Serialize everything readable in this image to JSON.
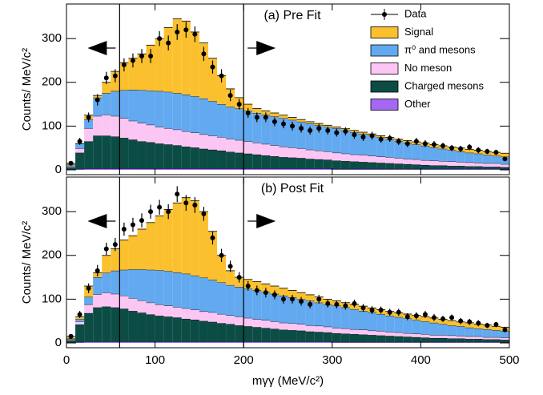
{
  "chart_data": [
    {
      "type": "stacked-histogram",
      "title": "(a) Pre Fit",
      "ylabel": "Counts/ MeV/c²",
      "xlim": [
        0,
        500
      ],
      "xticks": [
        0,
        100,
        200,
        300,
        400,
        500
      ],
      "ylim": [
        -11,
        379
      ],
      "yticks": [
        0,
        100,
        200,
        300
      ],
      "cuts": [
        60,
        200
      ],
      "legend": "upper right",
      "bins": [
        0,
        10,
        20,
        30,
        40,
        50,
        60,
        70,
        80,
        90,
        100,
        110,
        120,
        130,
        140,
        150,
        160,
        170,
        180,
        190,
        200,
        210,
        220,
        230,
        240,
        250,
        260,
        270,
        280,
        290,
        300,
        310,
        320,
        330,
        340,
        350,
        360,
        370,
        380,
        390,
        400,
        410,
        420,
        430,
        440,
        450,
        460,
        470,
        480,
        490,
        500
      ],
      "series": [
        {
          "name": "Other",
          "color": "#a468f4",
          "values": [
            1,
            2,
            3,
            3,
            3,
            3,
            3,
            3,
            3,
            3,
            3,
            3,
            3,
            3,
            3,
            3,
            3,
            3,
            3,
            3,
            3,
            3,
            3,
            3,
            3,
            3,
            3,
            3,
            3,
            3,
            2,
            2,
            2,
            2,
            2,
            2,
            2,
            2,
            2,
            2,
            2,
            2,
            2,
            2,
            2,
            2,
            2,
            2,
            2,
            2
          ]
        },
        {
          "name": "Charged mesons",
          "color": "#0b4d45",
          "values": [
            5,
            37,
            62,
            75,
            75,
            73,
            70,
            66,
            62,
            60,
            57,
            55,
            53,
            50,
            48,
            45,
            43,
            41,
            38,
            36,
            34,
            32,
            30,
            28,
            26,
            25,
            24,
            22,
            21,
            20,
            19,
            18,
            17,
            16,
            15,
            14,
            13,
            12,
            11,
            10,
            9,
            8,
            8,
            7,
            7,
            6,
            6,
            5,
            5,
            4
          ]
        },
        {
          "name": "No meson",
          "color": "#fbc6f3",
          "values": [
            3,
            10,
            30,
            45,
            48,
            47,
            45,
            43,
            42,
            40,
            38,
            37,
            36,
            35,
            34,
            33,
            32,
            31,
            30,
            29,
            28,
            27,
            26,
            25,
            24,
            23,
            22,
            21,
            20,
            19,
            18,
            17,
            16,
            16,
            15,
            14,
            14,
            13,
            12,
            12,
            11,
            11,
            10,
            10,
            9,
            9,
            8,
            8,
            8,
            7
          ]
        },
        {
          "name": "π⁰ and mesons",
          "color": "#62a9f0",
          "values": [
            3,
            11,
            20,
            42,
            49,
            57,
            64,
            71,
            75,
            78,
            82,
            83,
            83,
            84,
            83,
            82,
            79,
            75,
            73,
            72,
            70,
            68,
            67,
            66,
            65,
            63,
            61,
            60,
            58,
            56,
            56,
            53,
            51,
            48,
            46,
            44,
            41,
            39,
            37,
            34,
            33,
            30,
            28,
            26,
            24,
            22,
            21,
            19,
            17,
            17
          ]
        },
        {
          "name": "Signal",
          "color": "#fbc02d",
          "values": [
            3,
            0,
            10,
            5,
            25,
            45,
            63,
            72,
            83,
            104,
            120,
            147,
            170,
            168,
            147,
            127,
            98,
            65,
            41,
            25,
            15,
            10,
            9,
            8,
            7,
            6,
            5,
            4,
            4,
            4,
            3,
            4,
            4,
            4,
            4,
            4,
            4,
            4,
            5,
            6,
            6,
            7,
            7,
            7,
            8,
            8,
            8,
            8,
            8,
            8
          ]
        }
      ],
      "data": {
        "name": "Data",
        "color": "#000000",
        "values": [
          15,
          65,
          120,
          160,
          210,
          215,
          240,
          250,
          260,
          260,
          300,
          290,
          315,
          320,
          310,
          265,
          235,
          215,
          170,
          150,
          130,
          120,
          120,
          110,
          105,
          100,
          95,
          90,
          95,
          90,
          85,
          88,
          80,
          75,
          78,
          70,
          72,
          65,
          60,
          65,
          60,
          58,
          55,
          50,
          48,
          52,
          45,
          42,
          40,
          25
        ],
        "errors": [
          4,
          8,
          11,
          13,
          14,
          15,
          15,
          16,
          16,
          16,
          17,
          17,
          18,
          18,
          18,
          16,
          15,
          15,
          13,
          12,
          11,
          11,
          11,
          10,
          10,
          10,
          10,
          9,
          10,
          9,
          9,
          9,
          9,
          9,
          9,
          8,
          8,
          8,
          8,
          8,
          8,
          8,
          7,
          7,
          7,
          7,
          7,
          6,
          6,
          5
        ]
      }
    },
    {
      "type": "stacked-histogram",
      "title": "(b) Post Fit",
      "ylabel": "Counts/ MeV/c²",
      "xlabel": "mγγ (MeV/c²)",
      "xlim": [
        0,
        500
      ],
      "xticks": [
        0,
        100,
        200,
        300,
        400,
        500
      ],
      "ylim": [
        -11,
        379
      ],
      "yticks": [
        0,
        100,
        200,
        300
      ],
      "cuts": [
        60,
        200
      ],
      "bins": [
        0,
        10,
        20,
        30,
        40,
        50,
        60,
        70,
        80,
        90,
        100,
        110,
        120,
        130,
        140,
        150,
        160,
        170,
        180,
        190,
        200,
        210,
        220,
        230,
        240,
        250,
        260,
        270,
        280,
        290,
        300,
        310,
        320,
        330,
        340,
        350,
        360,
        370,
        380,
        390,
        400,
        410,
        420,
        430,
        440,
        450,
        460,
        470,
        480,
        490,
        500
      ],
      "series": [
        {
          "color": "#a468f4",
          "values": [
            1,
            2,
            3,
            3,
            3,
            3,
            3,
            3,
            3,
            3,
            3,
            3,
            3,
            3,
            3,
            3,
            3,
            3,
            3,
            3,
            3,
            3,
            3,
            3,
            3,
            3,
            3,
            3,
            3,
            3,
            2,
            2,
            2,
            2,
            2,
            2,
            2,
            2,
            2,
            2,
            2,
            2,
            2,
            2,
            2,
            2,
            2,
            2,
            2,
            2
          ]
        },
        {
          "color": "#0b4d45",
          "values": [
            5,
            40,
            65,
            78,
            80,
            78,
            75,
            70,
            66,
            62,
            59,
            57,
            55,
            52,
            50,
            47,
            45,
            42,
            40,
            37,
            35,
            33,
            31,
            29,
            27,
            26,
            25,
            23,
            22,
            21,
            20,
            19,
            18,
            17,
            16,
            15,
            14,
            13,
            12,
            11,
            10,
            9,
            9,
            8,
            8,
            7,
            7,
            6,
            6,
            5
          ]
        },
        {
          "color": "#fbc6f3",
          "values": [
            2,
            7,
            20,
            30,
            32,
            31,
            30,
            29,
            28,
            27,
            26,
            25,
            24,
            24,
            23,
            22,
            22,
            21,
            20,
            20,
            19,
            18,
            18,
            17,
            16,
            16,
            15,
            14,
            14,
            13,
            12,
            12,
            11,
            11,
            10,
            10,
            9,
            9,
            8,
            8,
            8,
            7,
            7,
            7,
            6,
            6,
            6,
            5,
            5,
            5
          ]
        },
        {
          "color": "#62a9f0",
          "values": [
            2,
            6,
            17,
            39,
            45,
            53,
            59,
            66,
            71,
            75,
            78,
            79,
            79,
            79,
            78,
            77,
            74,
            72,
            69,
            68,
            67,
            66,
            64,
            63,
            62,
            59,
            57,
            56,
            53,
            51,
            51,
            48,
            46,
            43,
            42,
            39,
            37,
            35,
            34,
            31,
            29,
            28,
            25,
            23,
            22,
            20,
            18,
            18,
            16,
            15
          ]
        },
        {
          "color": "#fbc02d",
          "values": [
            5,
            5,
            25,
            10,
            40,
            50,
            68,
            77,
            92,
            108,
            124,
            141,
            159,
            174,
            171,
            151,
            111,
            62,
            33,
            22,
            21,
            20,
            19,
            18,
            17,
            16,
            15,
            14,
            13,
            12,
            11,
            11,
            11,
            11,
            10,
            10,
            10,
            10,
            10,
            11,
            11,
            11,
            11,
            11,
            10,
            11,
            10,
            10,
            9,
            9
          ]
        }
      ],
      "data": {
        "color": "#000000",
        "values": [
          15,
          65,
          125,
          165,
          215,
          225,
          260,
          270,
          280,
          300,
          310,
          300,
          340,
          320,
          315,
          295,
          240,
          200,
          175,
          150,
          130,
          120,
          115,
          110,
          100,
          100,
          95,
          88,
          100,
          90,
          88,
          85,
          90,
          80,
          75,
          75,
          70,
          70,
          60,
          62,
          65,
          58,
          55,
          58,
          50,
          48,
          45,
          40,
          42,
          30
        ],
        "errors": [
          4,
          8,
          11,
          13,
          14,
          15,
          15,
          16,
          16,
          16,
          17,
          17,
          18,
          18,
          18,
          16,
          15,
          15,
          13,
          12,
          11,
          11,
          11,
          10,
          10,
          10,
          10,
          9,
          10,
          9,
          9,
          9,
          9,
          9,
          9,
          8,
          8,
          8,
          8,
          8,
          8,
          8,
          7,
          7,
          7,
          7,
          7,
          6,
          6,
          5
        ]
      }
    }
  ]
}
